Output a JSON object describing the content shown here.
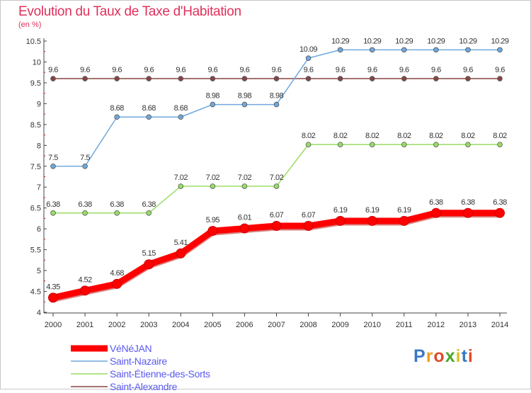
{
  "title": "Evolution du Taux de Taxe d'Habitation",
  "unit_label": "(en %)",
  "logo_text": "Proxiti",
  "chart_data": {
    "type": "line",
    "title": "Evolution du Taux de Taxe d'Habitation",
    "ylabel": "(en %)",
    "xlabel": "",
    "x": [
      "2000",
      "2001",
      "2002",
      "2003",
      "2004",
      "2005",
      "2006",
      "2007",
      "2008",
      "2009",
      "2010",
      "2011",
      "2012",
      "2013",
      "2014"
    ],
    "ylim": [
      4,
      10.5
    ],
    "yticks": [
      "4",
      "4.5",
      "5",
      "5.5",
      "6",
      "6.5",
      "7",
      "7.5",
      "8",
      "8.5",
      "9",
      "9.5",
      "10",
      "10.5"
    ],
    "grid": false,
    "legend_position": "bottom-left",
    "series": [
      {
        "name": "VéNéJAN",
        "color": "#ff0000",
        "values": [
          4.35,
          4.52,
          4.68,
          5.15,
          5.41,
          5.95,
          6.01,
          6.07,
          6.07,
          6.19,
          6.19,
          6.19,
          6.38,
          6.38,
          6.38
        ],
        "labels": [
          "4.35",
          "4.52",
          "4.68",
          "5.15",
          "5.41",
          "5.95",
          "6.01",
          "6.07",
          "6.07",
          "6.19",
          "6.19",
          "6.19",
          "6.38",
          "6.38",
          "6.38"
        ]
      },
      {
        "name": "Saint-Nazaire",
        "color": "#6fa8dc",
        "values": [
          7.5,
          7.5,
          8.68,
          8.68,
          8.68,
          8.98,
          8.98,
          8.98,
          10.09,
          10.29,
          10.29,
          10.29,
          10.29,
          10.29,
          10.29
        ],
        "labels": [
          "7.5",
          "7.5",
          "8.68",
          "8.68",
          "8.68",
          "8.98",
          "8.98",
          "8.98",
          "10.09",
          "10.29",
          "10.29",
          "10.29",
          "10.29",
          "10.29",
          "10.29"
        ]
      },
      {
        "name": "Saint-Étienne-des-Sorts",
        "color": "#99dd66",
        "values": [
          6.38,
          6.38,
          6.38,
          6.38,
          7.02,
          7.02,
          7.02,
          7.02,
          8.02,
          8.02,
          8.02,
          8.02,
          8.02,
          8.02,
          8.02
        ],
        "labels": [
          "6.38",
          "6.38",
          "6.38",
          "6.38",
          "7.02",
          "7.02",
          "7.02",
          "7.02",
          "8.02",
          "8.02",
          "8.02",
          "8.02",
          "8.02",
          "8.02",
          "8.02"
        ]
      },
      {
        "name": "Saint-Alexandre",
        "color": "#884444",
        "values": [
          9.6,
          9.6,
          9.6,
          9.6,
          9.6,
          9.6,
          9.6,
          9.6,
          9.6,
          9.6,
          9.6,
          9.6,
          9.6,
          9.6,
          9.6
        ],
        "labels": [
          "9.6",
          "9.6",
          "9.6",
          "9.6",
          "9.6",
          "9.6",
          "9.6",
          "9.6",
          "9.6",
          "9.6",
          "9.6",
          "9.6",
          "9.6",
          "9.6",
          "9.6"
        ]
      }
    ]
  }
}
